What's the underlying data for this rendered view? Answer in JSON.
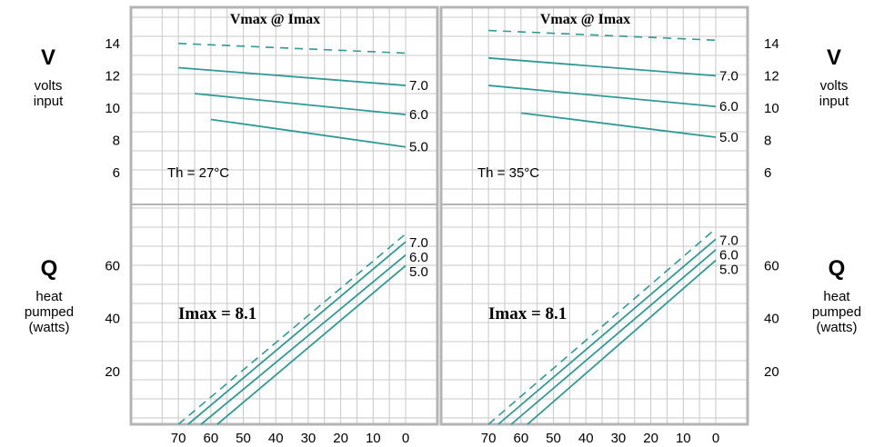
{
  "labels": {
    "v_symbol": "V",
    "v_desc_1": "volts",
    "v_desc_2": "input",
    "q_symbol": "Q",
    "q_desc_1": "heat",
    "q_desc_2": "pumped",
    "q_desc_3": "(watts)"
  },
  "chart_data": [
    {
      "type": "line",
      "title": "Vmax @ Imax",
      "annotations": [
        "Th = 27°C",
        "Imax = 8.1"
      ],
      "x_ticks": [
        "70",
        "60",
        "50",
        "40",
        "30",
        "20",
        "10",
        "0"
      ],
      "x_reversed": true,
      "xlim": [
        0,
        76
      ],
      "voltage": {
        "ylim": [
          5,
          15
        ],
        "y_ticks": [
          "14",
          "12",
          "10",
          "8",
          "6"
        ],
        "vmax": {
          "x": [
            0,
            70
          ],
          "y": [
            13.4,
            14.0
          ]
        },
        "series": [
          {
            "name": "7.0",
            "x": [
              0,
              70
            ],
            "y": [
              11.4,
              12.5
            ]
          },
          {
            "name": "6.0",
            "x": [
              0,
              65
            ],
            "y": [
              9.6,
              10.9
            ]
          },
          {
            "name": "5.0",
            "x": [
              0,
              60
            ],
            "y": [
              7.6,
              9.3
            ]
          }
        ]
      },
      "heat": {
        "ylim": [
          0,
          78
        ],
        "y_ticks": [
          "60",
          "40",
          "20"
        ],
        "vmax": {
          "x": [
            0,
            70
          ],
          "y": [
            72,
            0
          ]
        },
        "series": [
          {
            "name": "7.0",
            "x": [
              0,
              67
            ],
            "y": [
              69,
              0
            ]
          },
          {
            "name": "6.0",
            "x": [
              0,
              63
            ],
            "y": [
              64,
              0
            ]
          },
          {
            "name": "5.0",
            "x": [
              0,
              58
            ],
            "y": [
              60,
              0
            ]
          }
        ]
      }
    },
    {
      "type": "line",
      "title": "Vmax @ Imax",
      "annotations": [
        "Th = 35°C",
        "Imax = 8.1"
      ],
      "x_ticks": [
        "70",
        "60",
        "50",
        "40",
        "30",
        "20",
        "10",
        "0"
      ],
      "x_reversed": true,
      "xlim": [
        0,
        76
      ],
      "voltage": {
        "ylim": [
          5,
          15
        ],
        "y_ticks": [
          "14",
          "12",
          "10",
          "8",
          "6"
        ],
        "vmax": {
          "x": [
            0,
            70
          ],
          "y": [
            14.2,
            14.8
          ]
        },
        "series": [
          {
            "name": "7.0",
            "x": [
              0,
              70
            ],
            "y": [
              12.0,
              13.1
            ]
          },
          {
            "name": "6.0",
            "x": [
              0,
              70
            ],
            "y": [
              10.1,
              11.4
            ]
          },
          {
            "name": "5.0",
            "x": [
              0,
              60
            ],
            "y": [
              8.2,
              9.7
            ]
          }
        ]
      },
      "heat": {
        "ylim": [
          0,
          78
        ],
        "y_ticks": [
          "60",
          "40",
          "20"
        ],
        "vmax": {
          "x": [
            0,
            70
          ],
          "y": [
            74,
            0
          ]
        },
        "series": [
          {
            "name": "7.0",
            "x": [
              0,
              67
            ],
            "y": [
              70,
              0
            ]
          },
          {
            "name": "6.0",
            "x": [
              0,
              63
            ],
            "y": [
              66,
              0
            ]
          },
          {
            "name": "5.0",
            "x": [
              0,
              58
            ],
            "y": [
              62,
              0
            ]
          }
        ]
      }
    }
  ]
}
